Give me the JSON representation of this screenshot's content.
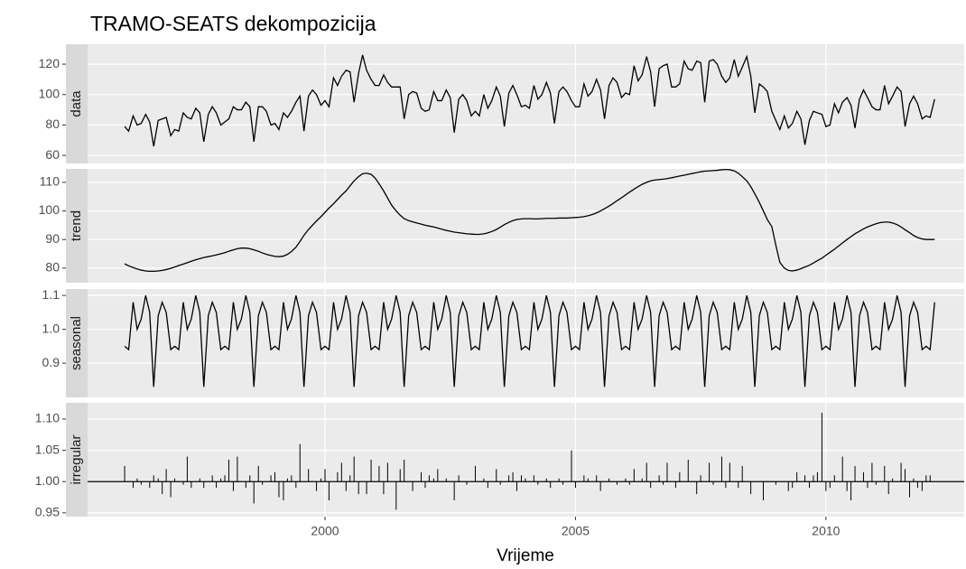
{
  "chart_data": {
    "type": "facet",
    "title": "TRAMO-SEATS dekompozicija",
    "xlabel": "Vrijeme",
    "xlim": [
      1995.26,
      2012.76
    ],
    "xticks": [
      2000,
      2005,
      2010
    ],
    "grid": true,
    "x": [
      1996.0,
      1996.08,
      1996.17,
      1996.25,
      1996.33,
      1996.42,
      1996.5,
      1996.58,
      1996.67,
      1996.75,
      1996.83,
      1996.92,
      1997.0,
      1997.08,
      1997.17,
      1997.25,
      1997.33,
      1997.42,
      1997.5,
      1997.58,
      1997.67,
      1997.75,
      1997.83,
      1997.92,
      1998.0,
      1998.08,
      1998.17,
      1998.25,
      1998.33,
      1998.42,
      1998.5,
      1998.58,
      1998.67,
      1998.75,
      1998.83,
      1998.92,
      1999.0,
      1999.08,
      1999.17,
      1999.25,
      1999.33,
      1999.42,
      1999.5,
      1999.58,
      1999.67,
      1999.75,
      1999.83,
      1999.92,
      2000.0,
      2000.08,
      2000.17,
      2000.25,
      2000.33,
      2000.42,
      2000.5,
      2000.58,
      2000.67,
      2000.75,
      2000.83,
      2000.92,
      2001.0,
      2001.08,
      2001.17,
      2001.25,
      2001.33,
      2001.42,
      2001.5,
      2001.58,
      2001.67,
      2001.75,
      2001.83,
      2001.92,
      2002.0,
      2002.08,
      2002.17,
      2002.25,
      2002.33,
      2002.42,
      2002.5,
      2002.58,
      2002.67,
      2002.75,
      2002.83,
      2002.92,
      2003.0,
      2003.08,
      2003.17,
      2003.25,
      2003.33,
      2003.42,
      2003.5,
      2003.58,
      2003.67,
      2003.75,
      2003.83,
      2003.92,
      2004.0,
      2004.08,
      2004.17,
      2004.25,
      2004.33,
      2004.42,
      2004.5,
      2004.58,
      2004.67,
      2004.75,
      2004.83,
      2004.92,
      2005.0,
      2005.08,
      2005.17,
      2005.25,
      2005.33,
      2005.42,
      2005.5,
      2005.58,
      2005.67,
      2005.75,
      2005.83,
      2005.92,
      2006.0,
      2006.08,
      2006.17,
      2006.25,
      2006.33,
      2006.42,
      2006.5,
      2006.58,
      2006.67,
      2006.75,
      2006.83,
      2006.92,
      2007.0,
      2007.08,
      2007.17,
      2007.25,
      2007.33,
      2007.42,
      2007.5,
      2007.58,
      2007.67,
      2007.75,
      2007.83,
      2007.92,
      2008.0,
      2008.08,
      2008.17,
      2008.25,
      2008.33,
      2008.42,
      2008.5,
      2008.58,
      2008.67,
      2008.75,
      2008.83,
      2008.92,
      2009.0,
      2009.08,
      2009.17,
      2009.25,
      2009.33,
      2009.42,
      2009.5,
      2009.58,
      2009.67,
      2009.75,
      2009.83,
      2009.92,
      2010.0,
      2010.08,
      2010.17,
      2010.25,
      2010.33,
      2010.42,
      2010.5,
      2010.58,
      2010.67,
      2010.75,
      2010.83,
      2010.92,
      2011.0,
      2011.08,
      2011.17,
      2011.25,
      2011.33,
      2011.42,
      2011.5,
      2011.58,
      2011.67,
      2011.75,
      2011.83,
      2011.92,
      2012.0,
      2012.08,
      2012.17
    ],
    "panels": [
      {
        "name": "data",
        "type": "line",
        "color": "#000000",
        "ylim": [
          54.7,
          133.1
        ],
        "yticks": [
          60,
          80,
          100,
          120
        ],
        "values": [
          79,
          76,
          86,
          80,
          81,
          87,
          82,
          66,
          83,
          84,
          85,
          73,
          77,
          76,
          88,
          85,
          84,
          91,
          88,
          69,
          87,
          92,
          88,
          80,
          82,
          84,
          92,
          90,
          90,
          95,
          92,
          69,
          92,
          92,
          89,
          80,
          81,
          77,
          88,
          85,
          89,
          95,
          99,
          76,
          99,
          103,
          100,
          93,
          96,
          92,
          111,
          106,
          112,
          116,
          115,
          95,
          114,
          126,
          116,
          110,
          106,
          106,
          113,
          108,
          105,
          105,
          105,
          84,
          100,
          102,
          101,
          91,
          89,
          90,
          102,
          96,
          96,
          103,
          98,
          75,
          97,
          100,
          96,
          86,
          89,
          86,
          100,
          91,
          96,
          105,
          99,
          79,
          101,
          106,
          100,
          92,
          93,
          91,
          106,
          97,
          100,
          108,
          101,
          81,
          102,
          105,
          102,
          96,
          92,
          92,
          107,
          99,
          102,
          110,
          103,
          84,
          106,
          111,
          108,
          98,
          101,
          100,
          119,
          109,
          113,
          125,
          115,
          92,
          117,
          119,
          120,
          105,
          105,
          107,
          122,
          117,
          116,
          122,
          121,
          95,
          122,
          123,
          120,
          112,
          108,
          111,
          123,
          112,
          118,
          125,
          112,
          88,
          107,
          105,
          102,
          89,
          83,
          77,
          86,
          78,
          81,
          89,
          84,
          67,
          83,
          89,
          88,
          87,
          79,
          80,
          94,
          88,
          95,
          98,
          93,
          78,
          97,
          103,
          98,
          92,
          90,
          90,
          106,
          94,
          99,
          105,
          102,
          79,
          94,
          99,
          94,
          84,
          86,
          85,
          97
        ]
      },
      {
        "name": "trend",
        "type": "line",
        "color": "#000000",
        "ylim": [
          74.9,
          114.7
        ],
        "yticks": [
          80,
          90,
          100,
          110
        ],
        "values": [
          81.5,
          80.8,
          80.2,
          79.7,
          79.3,
          79.0,
          78.9,
          78.9,
          79.0,
          79.2,
          79.5,
          79.9,
          80.4,
          80.9,
          81.4,
          81.9,
          82.4,
          82.9,
          83.3,
          83.7,
          84.0,
          84.3,
          84.6,
          85.0,
          85.4,
          85.9,
          86.4,
          86.8,
          87.0,
          87.0,
          86.8,
          86.4,
          85.9,
          85.3,
          84.8,
          84.4,
          84.1,
          84.0,
          84.2,
          84.8,
          85.8,
          87.3,
          89.3,
          91.5,
          93.5,
          95.0,
          96.5,
          98.0,
          99.5,
          101.0,
          102.5,
          104.0,
          105.5,
          107.0,
          108.8,
          110.5,
          112.0,
          113.0,
          113.2,
          112.8,
          111.5,
          109.5,
          107.0,
          104.5,
          102.0,
          100.0,
          98.5,
          97.3,
          96.6,
          96.2,
          95.8,
          95.4,
          95.0,
          94.7,
          94.4,
          94.0,
          93.6,
          93.2,
          92.9,
          92.6,
          92.4,
          92.2,
          92.0,
          91.9,
          91.8,
          91.8,
          92.0,
          92.3,
          92.8,
          93.5,
          94.3,
          95.2,
          96.0,
          96.6,
          97.0,
          97.2,
          97.3,
          97.3,
          97.2,
          97.2,
          97.3,
          97.4,
          97.4,
          97.4,
          97.5,
          97.5,
          97.5,
          97.6,
          97.7,
          97.8,
          98.0,
          98.3,
          98.7,
          99.3,
          100.0,
          100.8,
          101.7,
          102.6,
          103.6,
          104.6,
          105.6,
          106.6,
          107.6,
          108.5,
          109.3,
          110.0,
          110.5,
          110.8,
          111.0,
          111.1,
          111.3,
          111.6,
          111.9,
          112.2,
          112.5,
          112.8,
          113.1,
          113.4,
          113.7,
          113.9,
          114.0,
          114.1,
          114.2,
          114.4,
          114.5,
          114.4,
          114.0,
          113.2,
          112.0,
          110.5,
          108.5,
          106.0,
          103.0,
          100.0,
          97.0,
          94.5,
          88.0,
          82.0,
          80.0,
          79.2,
          79.0,
          79.3,
          79.8,
          80.4,
          81.0,
          81.8,
          82.6,
          83.5,
          84.5,
          85.5,
          86.6,
          87.7,
          88.8,
          90.0,
          91.0,
          92.0,
          92.9,
          93.7,
          94.4,
          95.0,
          95.5,
          95.9,
          96.1,
          96.1,
          95.8,
          95.2,
          94.4,
          93.4,
          92.4,
          91.4,
          90.7,
          90.2,
          90.0,
          90.0,
          90.0
        ]
      },
      {
        "name": "seasonal",
        "type": "line",
        "color": "#000000",
        "ylim": [
          0.799,
          1.119
        ],
        "yticks": [
          0.9,
          {
            "value": 1,
            "label": "1.0"
          },
          1.1
        ],
        "values": [
          0.95,
          0.94,
          1.08,
          1.0,
          1.03,
          1.1,
          1.05,
          0.83,
          1.04,
          1.08,
          1.05,
          0.94,
          0.95,
          0.94,
          1.08,
          1.0,
          1.03,
          1.1,
          1.05,
          0.83,
          1.04,
          1.08,
          1.05,
          0.94,
          0.95,
          0.94,
          1.08,
          1.0,
          1.03,
          1.1,
          1.05,
          0.83,
          1.04,
          1.08,
          1.05,
          0.94,
          0.95,
          0.94,
          1.08,
          1.0,
          1.03,
          1.1,
          1.05,
          0.83,
          1.04,
          1.08,
          1.05,
          0.94,
          0.95,
          0.94,
          1.08,
          1.0,
          1.03,
          1.1,
          1.05,
          0.83,
          1.04,
          1.08,
          1.05,
          0.94,
          0.95,
          0.94,
          1.08,
          1.0,
          1.03,
          1.1,
          1.05,
          0.83,
          1.04,
          1.08,
          1.05,
          0.94,
          0.95,
          0.94,
          1.08,
          1.0,
          1.03,
          1.1,
          1.05,
          0.83,
          1.04,
          1.08,
          1.05,
          0.94,
          0.95,
          0.94,
          1.08,
          1.0,
          1.03,
          1.1,
          1.05,
          0.83,
          1.04,
          1.08,
          1.05,
          0.94,
          0.95,
          0.94,
          1.08,
          1.0,
          1.03,
          1.1,
          1.05,
          0.83,
          1.04,
          1.08,
          1.05,
          0.94,
          0.95,
          0.94,
          1.08,
          1.0,
          1.03,
          1.1,
          1.05,
          0.83,
          1.04,
          1.08,
          1.05,
          0.94,
          0.95,
          0.94,
          1.08,
          1.0,
          1.03,
          1.1,
          1.05,
          0.83,
          1.04,
          1.08,
          1.05,
          0.94,
          0.95,
          0.94,
          1.08,
          1.0,
          1.03,
          1.1,
          1.05,
          0.83,
          1.04,
          1.08,
          1.05,
          0.94,
          0.95,
          0.94,
          1.08,
          1.0,
          1.03,
          1.1,
          1.05,
          0.83,
          1.04,
          1.08,
          1.05,
          0.94,
          0.95,
          0.94,
          1.08,
          1.0,
          1.03,
          1.1,
          1.05,
          0.83,
          1.04,
          1.08,
          1.05,
          0.94,
          0.95,
          0.94,
          1.08,
          1.0,
          1.03,
          1.1,
          1.05,
          0.83,
          1.04,
          1.08,
          1.05,
          0.94,
          0.95,
          0.94,
          1.08,
          1.0,
          1.03,
          1.1,
          1.05,
          0.83,
          1.04,
          1.08,
          1.05,
          0.94,
          0.95,
          0.94,
          1.08
        ]
      },
      {
        "name": "irregular",
        "type": "bar",
        "color": "#000000",
        "baseline": 1,
        "ylim": [
          0.944,
          1.126
        ],
        "yticks": [
          0.95,
          {
            "value": 1,
            "label": "1.00"
          },
          1.05,
          {
            "value": 1.1,
            "label": "1.10"
          }
        ],
        "values": [
          1.025,
          1.0,
          0.99,
          1.005,
          0.995,
          1.0,
          0.99,
          1.01,
          1.005,
          0.98,
          1.02,
          0.975,
          1.005,
          1.0,
          0.995,
          1.04,
          0.99,
          1.0,
          1.005,
          0.99,
          1.0,
          1.01,
          0.99,
          1.005,
          1.01,
          1.035,
          0.985,
          1.04,
          1.0,
          0.99,
          1.01,
          0.965,
          1.025,
          0.995,
          1.0,
          1.01,
          1.015,
          0.975,
          0.97,
          1.005,
          1.01,
          0.99,
          1.06,
          1.0,
          1.02,
          1.0,
          0.985,
          1.005,
          1.02,
          0.97,
          1.0,
          1.015,
          1.03,
          0.985,
          1.01,
          1.04,
          0.98,
          1.0,
          0.98,
          1.035,
          1.0,
          1.025,
          0.98,
          1.03,
          1.0,
          0.955,
          1.02,
          1.035,
          1.0,
          0.985,
          1.0,
          1.015,
          0.99,
          1.01,
          1.005,
          1.02,
          1.0,
          1.005,
          1.0,
          0.97,
          1.01,
          1.0,
          0.995,
          1.0,
          1.025,
          1.0,
          1.005,
          0.99,
          1.0,
          1.02,
          0.995,
          1.0,
          1.01,
          1.015,
          0.985,
          1.01,
          1.005,
          1.0,
          1.01,
          0.995,
          1.0,
          1.005,
          0.99,
          1.0,
          1.005,
          0.995,
          1.0,
          1.05,
          0.99,
          1.0,
          1.01,
          1.005,
          1.0,
          1.01,
          0.985,
          1.0,
          1.005,
          1.0,
          0.995,
          1.0,
          1.005,
          0.995,
          1.02,
          1.0,
          1.005,
          1.03,
          0.99,
          1.0,
          1.01,
          0.995,
          1.03,
          1.0,
          0.99,
          1.015,
          1.0,
          1.035,
          1.0,
          0.98,
          1.01,
          1.0,
          1.03,
          0.995,
          1.0,
          1.04,
          0.99,
          1.03,
          1.0,
          0.99,
          1.025,
          1.0,
          0.98,
          1.0,
          1.0,
          0.97,
          1.0,
          1.0,
          0.995,
          1.0,
          1.0,
          0.985,
          0.99,
          1.015,
          1.0,
          1.01,
          0.99,
          1.01,
          1.015,
          1.11,
          0.985,
          0.99,
          1.01,
          1.0,
          1.04,
          0.985,
          0.97,
          1.025,
          1.0,
          1.015,
          0.99,
          1.03,
          0.995,
          1.0,
          1.025,
          0.98,
          1.005,
          1.0,
          1.03,
          1.02,
          0.975,
          1.005,
          0.99,
          0.985,
          1.01,
          1.01,
          1.0
        ]
      }
    ]
  }
}
